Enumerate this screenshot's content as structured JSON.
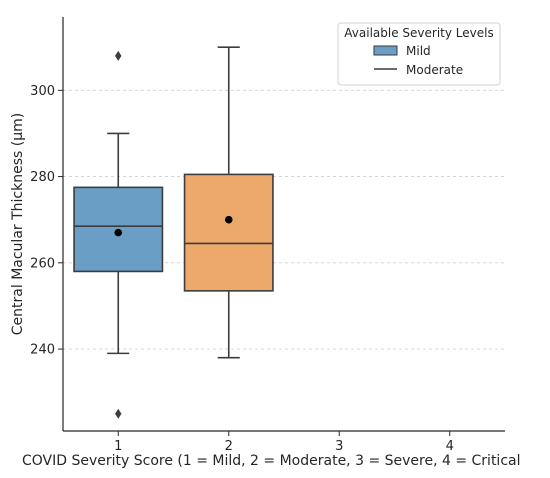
{
  "chart_data": {
    "type": "box",
    "xlabel": "COVID Severity Score (1 = Mild, 2 = Moderate, 3 = Severe, 4 = Critical",
    "ylabel": "Central Macular Thickness (µm)",
    "categories": [
      "1",
      "2",
      "3",
      "4"
    ],
    "x_range": [
      0.5,
      4.5
    ],
    "ylim": [
      221,
      317
    ],
    "y_ticks": [
      240,
      260,
      280,
      300
    ],
    "grid": "horizontal dashed",
    "legend": {
      "title": "Available Severity Levels",
      "placement": "top-right",
      "entries": [
        {
          "label": "Mild",
          "marker": "patch"
        },
        {
          "label": "Moderate",
          "marker": "line"
        }
      ]
    },
    "boxes": [
      {
        "category": "1",
        "name": "Mild",
        "color": "#6a9ec5",
        "whisker_low": 239,
        "q1": 258,
        "median": 268.5,
        "q3": 277.5,
        "whisker_high": 290,
        "mean": 267,
        "outliers": [
          308,
          225
        ]
      },
      {
        "category": "2",
        "name": "Moderate",
        "color": "#eda96b",
        "whisker_low": 238,
        "q1": 253.5,
        "median": 264.5,
        "q3": 280.5,
        "whisker_high": 310,
        "mean": 270,
        "outliers": []
      }
    ]
  }
}
